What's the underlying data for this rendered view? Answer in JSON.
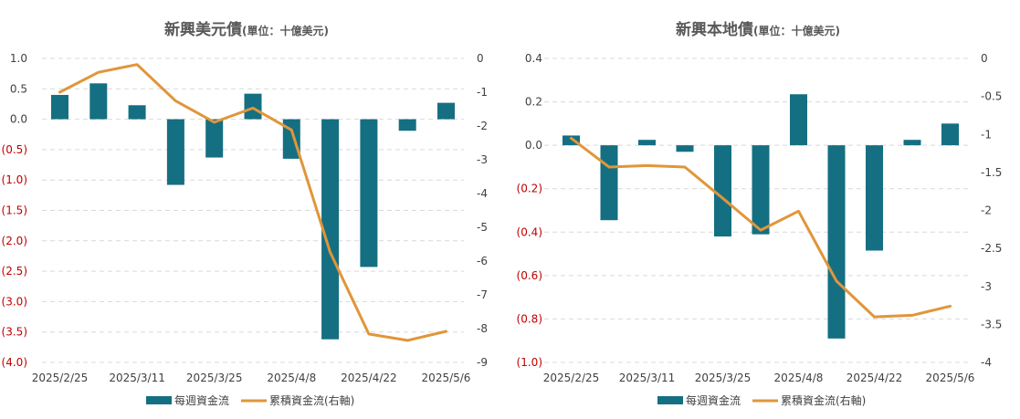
{
  "chart_data": [
    {
      "type": "bar+line",
      "title": "新興美元債",
      "subtitle": "(單位：十億美元)",
      "categories": [
        "2025/2/25",
        "2025/3/4",
        "2025/3/11",
        "2025/3/18",
        "2025/3/25",
        "2025/4/1",
        "2025/4/8",
        "2025/4/15",
        "2025/4/22",
        "2025/4/29",
        "2025/5/6"
      ],
      "x_tick_labels": [
        "2025/2/25",
        "2025/3/11",
        "2025/3/25",
        "2025/4/8",
        "2025/4/22",
        "2025/5/6"
      ],
      "series": [
        {
          "name": "每週資金流",
          "kind": "bar",
          "axis": "left",
          "values": [
            0.4,
            0.59,
            0.23,
            -1.08,
            -0.63,
            0.42,
            -0.65,
            -3.62,
            -2.43,
            -0.19,
            0.27
          ]
        },
        {
          "name": "累積資金流(右軸)",
          "kind": "line",
          "axis": "right",
          "values": [
            -1.0,
            -0.41,
            -0.18,
            -1.26,
            -1.89,
            -1.47,
            -2.12,
            -5.74,
            -8.16,
            -8.35,
            -8.08
          ]
        }
      ],
      "ylim_left": [
        -4.0,
        1.0
      ],
      "left_ticks": [
        1.0,
        0.5,
        0.0,
        -0.5,
        -1.0,
        -1.5,
        -2.0,
        -2.5,
        -3.0,
        -3.5,
        -4.0
      ],
      "left_tick_labels": [
        "1.0",
        "0.5",
        "0.0",
        "(0.5)",
        "(1.0)",
        "(1.5)",
        "(2.0)",
        "(2.5)",
        "(3.0)",
        "(3.5)",
        "(4.0)"
      ],
      "ylim_right": [
        -9,
        0
      ],
      "right_ticks": [
        0,
        -1,
        -2,
        -3,
        -4,
        -5,
        -6,
        -7,
        -8,
        -9
      ],
      "right_tick_labels": [
        "0",
        "-1",
        "-2",
        "-3",
        "-4",
        "-5",
        "-6",
        "-7",
        "-8",
        "-9"
      ],
      "grid": true,
      "legend_position": "bottom"
    },
    {
      "type": "bar+line",
      "title": "新興本地債",
      "subtitle": "(單位：十億美元)",
      "categories": [
        "2025/2/25",
        "2025/3/4",
        "2025/3/11",
        "2025/3/18",
        "2025/3/25",
        "2025/4/1",
        "2025/4/8",
        "2025/4/15",
        "2025/4/22",
        "2025/4/29",
        "2025/5/6"
      ],
      "x_tick_labels": [
        "2025/2/25",
        "2025/3/11",
        "2025/3/25",
        "2025/4/8",
        "2025/4/22",
        "2025/5/6"
      ],
      "series": [
        {
          "name": "每週資金流",
          "kind": "bar",
          "axis": "left",
          "values": [
            0.045,
            -0.345,
            0.025,
            -0.03,
            -0.42,
            -0.41,
            0.235,
            -0.89,
            -0.485,
            0.025,
            0.1
          ]
        },
        {
          "name": "累積資金流(右軸)",
          "kind": "line",
          "axis": "right",
          "values": [
            -1.05,
            -1.43,
            -1.41,
            -1.43,
            -1.84,
            -2.26,
            -2.01,
            -2.93,
            -3.4,
            -3.38,
            -3.26
          ]
        }
      ],
      "ylim_left": [
        -1.0,
        0.4
      ],
      "left_ticks": [
        0.4,
        0.2,
        0.0,
        -0.2,
        -0.4,
        -0.6,
        -0.8,
        -1.0
      ],
      "left_tick_labels": [
        "0.4",
        "0.2",
        "0.0",
        "(0.2)",
        "(0.4)",
        "(0.6)",
        "(0.8)",
        "(1.0)"
      ],
      "ylim_right": [
        -4,
        0
      ],
      "right_ticks": [
        0,
        -0.5,
        -1,
        -1.5,
        -2,
        -2.5,
        -3,
        -3.5,
        -4
      ],
      "right_tick_labels": [
        "0",
        "-0.5",
        "-1",
        "-1.5",
        "-2",
        "-2.5",
        "-3",
        "-3.5",
        "-4"
      ],
      "grid": true,
      "legend_position": "bottom"
    }
  ],
  "colors": {
    "bar": "#156f82",
    "line": "#e0963a",
    "grid": "#d9d9d9",
    "negative_tick": "#c00000",
    "text": "#404040",
    "title": "#595959"
  }
}
